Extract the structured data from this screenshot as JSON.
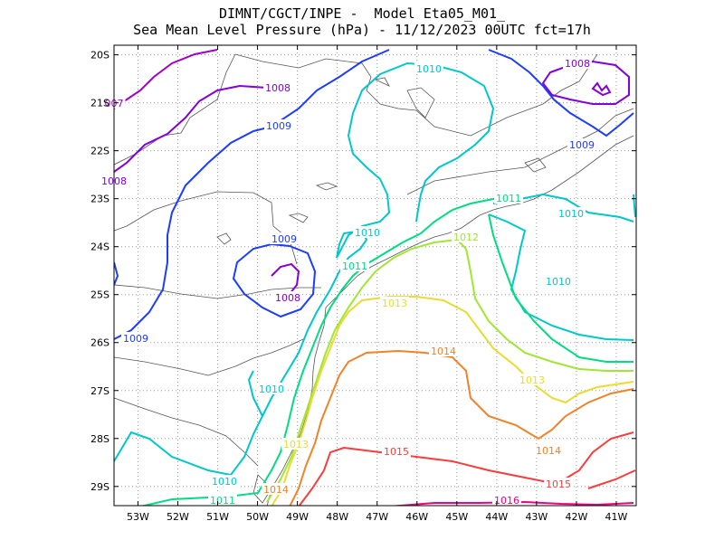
{
  "header": {
    "line1": "DIMNT/CGCT/INPE -  Model Eta05_M01_",
    "line2": "Sea Mean Level Pressure (hPa) - 11/12/2023 00UTC fct=17h"
  },
  "axes": {
    "lat_labels": [
      "20S",
      "21S",
      "22S",
      "23S",
      "24S",
      "25S",
      "26S",
      "27S",
      "28S",
      "29S"
    ],
    "lon_labels": [
      "53W",
      "52W",
      "51W",
      "50W",
      "49W",
      "48W",
      "47W",
      "46W",
      "45W",
      "44W",
      "43W",
      "42W",
      "41W"
    ],
    "lat_range": [
      -29.4,
      -19.8
    ],
    "lon_range": [
      -53.6,
      -40.5
    ]
  },
  "contour_colors": {
    "1007": "#a000c8",
    "1008": "#8200dc",
    "1009": "#1e3cff",
    "1010": "#00c8c8",
    "1011": "#00dc82",
    "1012": "#a0e632",
    "1013": "#e6dc32",
    "1014": "#f08228",
    "1015": "#fa3c3c",
    "1016": "#f00082"
  },
  "contour_labels": [
    {
      "text": "007",
      "level": "1007"
    },
    {
      "text": "1008",
      "level": "1008"
    },
    {
      "text": "1008",
      "level": "1008"
    },
    {
      "text": "1008",
      "level": "1008"
    },
    {
      "text": "1008",
      "level": "1008"
    },
    {
      "text": "1009",
      "level": "1009"
    },
    {
      "text": "1009",
      "level": "1009"
    },
    {
      "text": "1009",
      "level": "1009"
    },
    {
      "text": "1009",
      "level": "1009"
    },
    {
      "text": "1010",
      "level": "1010"
    },
    {
      "text": "1010",
      "level": "1010"
    },
    {
      "text": "1010",
      "level": "1010"
    },
    {
      "text": "1010",
      "level": "1010"
    },
    {
      "text": "1010",
      "level": "1010"
    },
    {
      "text": "1010",
      "level": "1010"
    },
    {
      "text": "1011",
      "level": "1011"
    },
    {
      "text": "1011",
      "level": "1011"
    },
    {
      "text": "1011",
      "level": "1011"
    },
    {
      "text": "1012",
      "level": "1012"
    },
    {
      "text": "1013",
      "level": "1013"
    },
    {
      "text": "1013",
      "level": "1013"
    },
    {
      "text": "1013",
      "level": "1013"
    },
    {
      "text": "1014",
      "level": "1014"
    },
    {
      "text": "1014",
      "level": "1014"
    },
    {
      "text": "1014",
      "level": "1014"
    },
    {
      "text": "1015",
      "level": "1015"
    },
    {
      "text": "1015",
      "level": "1015"
    },
    {
      "text": "1016",
      "level": "1016"
    }
  ]
}
